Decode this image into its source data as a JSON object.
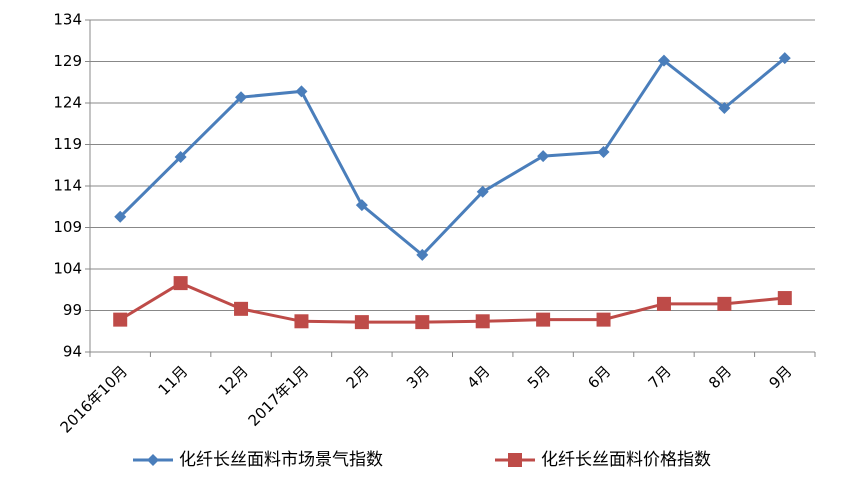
{
  "chart_data": {
    "type": "line",
    "categories": [
      "2016年10月",
      "11月",
      "12月",
      "2017年1月",
      "2月",
      "3月",
      "4月",
      "5月",
      "6月",
      "7月",
      "8月",
      "9月"
    ],
    "series": [
      {
        "name": "化纤长丝面料市场景气指数",
        "color": "#4a7ebb",
        "marker": "diamond",
        "values": [
          110.3,
          117.5,
          124.7,
          125.4,
          111.7,
          105.7,
          113.3,
          117.6,
          118.1,
          129.1,
          123.4,
          129.4
        ]
      },
      {
        "name": "化纤长丝面料价格指数",
        "color": "#be4b48",
        "marker": "square",
        "values": [
          97.9,
          102.3,
          99.2,
          97.7,
          97.6,
          97.6,
          97.7,
          97.9,
          97.9,
          99.8,
          99.8,
          100.5
        ]
      }
    ],
    "ylim": [
      94,
      134
    ],
    "yticks": [
      94,
      99,
      104,
      109,
      114,
      119,
      124,
      129,
      134
    ],
    "grid": true,
    "legend": "bottom"
  }
}
